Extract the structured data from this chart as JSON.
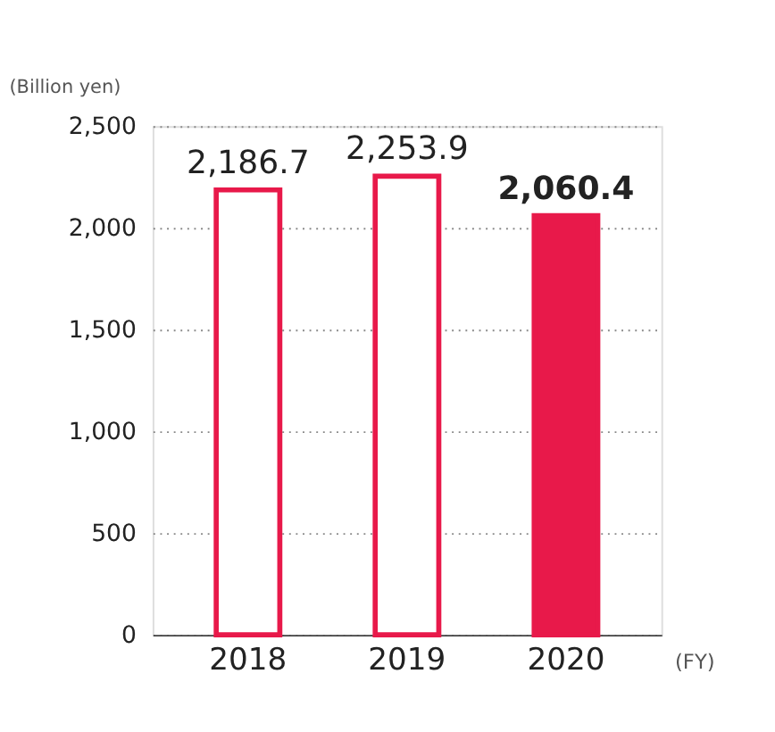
{
  "chart_data": {
    "type": "bar",
    "ylabel": "(Billion yen)",
    "xlabel": "(FY)",
    "categories": [
      "2018",
      "2019",
      "2020"
    ],
    "values": [
      2186.7,
      2253.9,
      2060.4
    ],
    "colors": [
      "#ffffff",
      "#ffffff",
      "#e8194a"
    ],
    "ylim": [
      0,
      2500
    ],
    "yticks": [
      0,
      500,
      {
        "value": 1000,
        "label": "1,000"
      },
      {
        "value": 1500,
        "label": "1,500"
      },
      {
        "value": 2000,
        "label": "2,000"
      },
      {
        "value": 2500,
        "label": "2,500"
      }
    ],
    "value_labels": [
      "2,186.7",
      "2,253.9",
      "2,060.4"
    ],
    "grid": "y"
  }
}
